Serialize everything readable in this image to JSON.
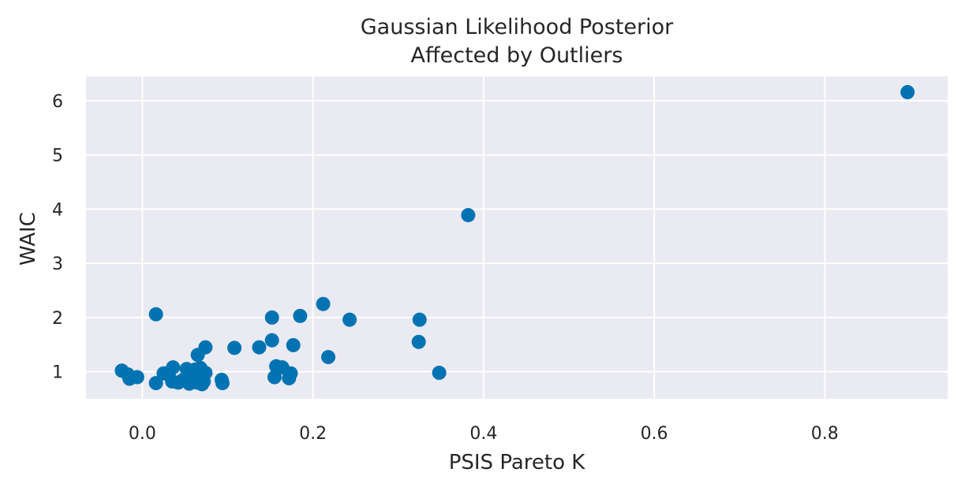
{
  "chart_data": {
    "type": "scatter",
    "title": "Gaussian Likelihood Posterior",
    "subtitle": "Affected by Outliers",
    "xlabel": "PSIS Pareto K",
    "ylabel": "WAIC",
    "xlim": [
      -0.066,
      0.944
    ],
    "ylim": [
      0.5,
      6.45
    ],
    "xticks": [
      {
        "value": 0.0,
        "label": "0.0"
      },
      {
        "value": 0.2,
        "label": "0.2"
      },
      {
        "value": 0.4,
        "label": "0.4"
      },
      {
        "value": 0.6,
        "label": "0.6"
      },
      {
        "value": 0.8,
        "label": "0.8"
      }
    ],
    "yticks": [
      {
        "value": 1,
        "label": "1"
      },
      {
        "value": 2,
        "label": "2"
      },
      {
        "value": 3,
        "label": "3"
      },
      {
        "value": 4,
        "label": "4"
      },
      {
        "value": 5,
        "label": "5"
      },
      {
        "value": 6,
        "label": "6"
      }
    ],
    "grid": true,
    "colors": {
      "background": "#eaeaf2",
      "grid": "#ffffff",
      "marker": "#0173b2"
    },
    "points": [
      {
        "x": 0.897,
        "y": 6.16
      },
      {
        "x": 0.382,
        "y": 3.89
      },
      {
        "x": 0.016,
        "y": 2.06
      },
      {
        "x": 0.212,
        "y": 2.25
      },
      {
        "x": 0.152,
        "y": 2.0
      },
      {
        "x": 0.185,
        "y": 2.03
      },
      {
        "x": 0.243,
        "y": 1.96
      },
      {
        "x": 0.325,
        "y": 1.96
      },
      {
        "x": 0.324,
        "y": 1.55
      },
      {
        "x": 0.152,
        "y": 1.58
      },
      {
        "x": 0.177,
        "y": 1.49
      },
      {
        "x": 0.137,
        "y": 1.45
      },
      {
        "x": 0.108,
        "y": 1.44
      },
      {
        "x": 0.074,
        "y": 1.45
      },
      {
        "x": 0.065,
        "y": 1.31
      },
      {
        "x": 0.218,
        "y": 1.27
      },
      {
        "x": 0.157,
        "y": 1.1
      },
      {
        "x": 0.164,
        "y": 1.08
      },
      {
        "x": 0.155,
        "y": 0.9
      },
      {
        "x": 0.172,
        "y": 0.88
      },
      {
        "x": 0.174,
        "y": 0.97
      },
      {
        "x": 0.348,
        "y": 0.98
      },
      {
        "x": -0.024,
        "y": 1.02
      },
      {
        "x": -0.017,
        "y": 0.95
      },
      {
        "x": -0.015,
        "y": 0.87
      },
      {
        "x": -0.006,
        "y": 0.9
      },
      {
        "x": 0.016,
        "y": 0.79
      },
      {
        "x": 0.025,
        "y": 0.97
      },
      {
        "x": 0.031,
        "y": 0.95
      },
      {
        "x": 0.036,
        "y": 1.08
      },
      {
        "x": 0.035,
        "y": 0.82
      },
      {
        "x": 0.042,
        "y": 0.8
      },
      {
        "x": 0.047,
        "y": 0.84
      },
      {
        "x": 0.052,
        "y": 1.05
      },
      {
        "x": 0.055,
        "y": 0.78
      },
      {
        "x": 0.058,
        "y": 0.9
      },
      {
        "x": 0.062,
        "y": 1.04
      },
      {
        "x": 0.064,
        "y": 0.8
      },
      {
        "x": 0.066,
        "y": 0.86
      },
      {
        "x": 0.068,
        "y": 1.07
      },
      {
        "x": 0.07,
        "y": 0.77
      },
      {
        "x": 0.072,
        "y": 0.82
      },
      {
        "x": 0.074,
        "y": 0.98
      },
      {
        "x": 0.093,
        "y": 0.85
      },
      {
        "x": 0.094,
        "y": 0.79
      }
    ]
  }
}
